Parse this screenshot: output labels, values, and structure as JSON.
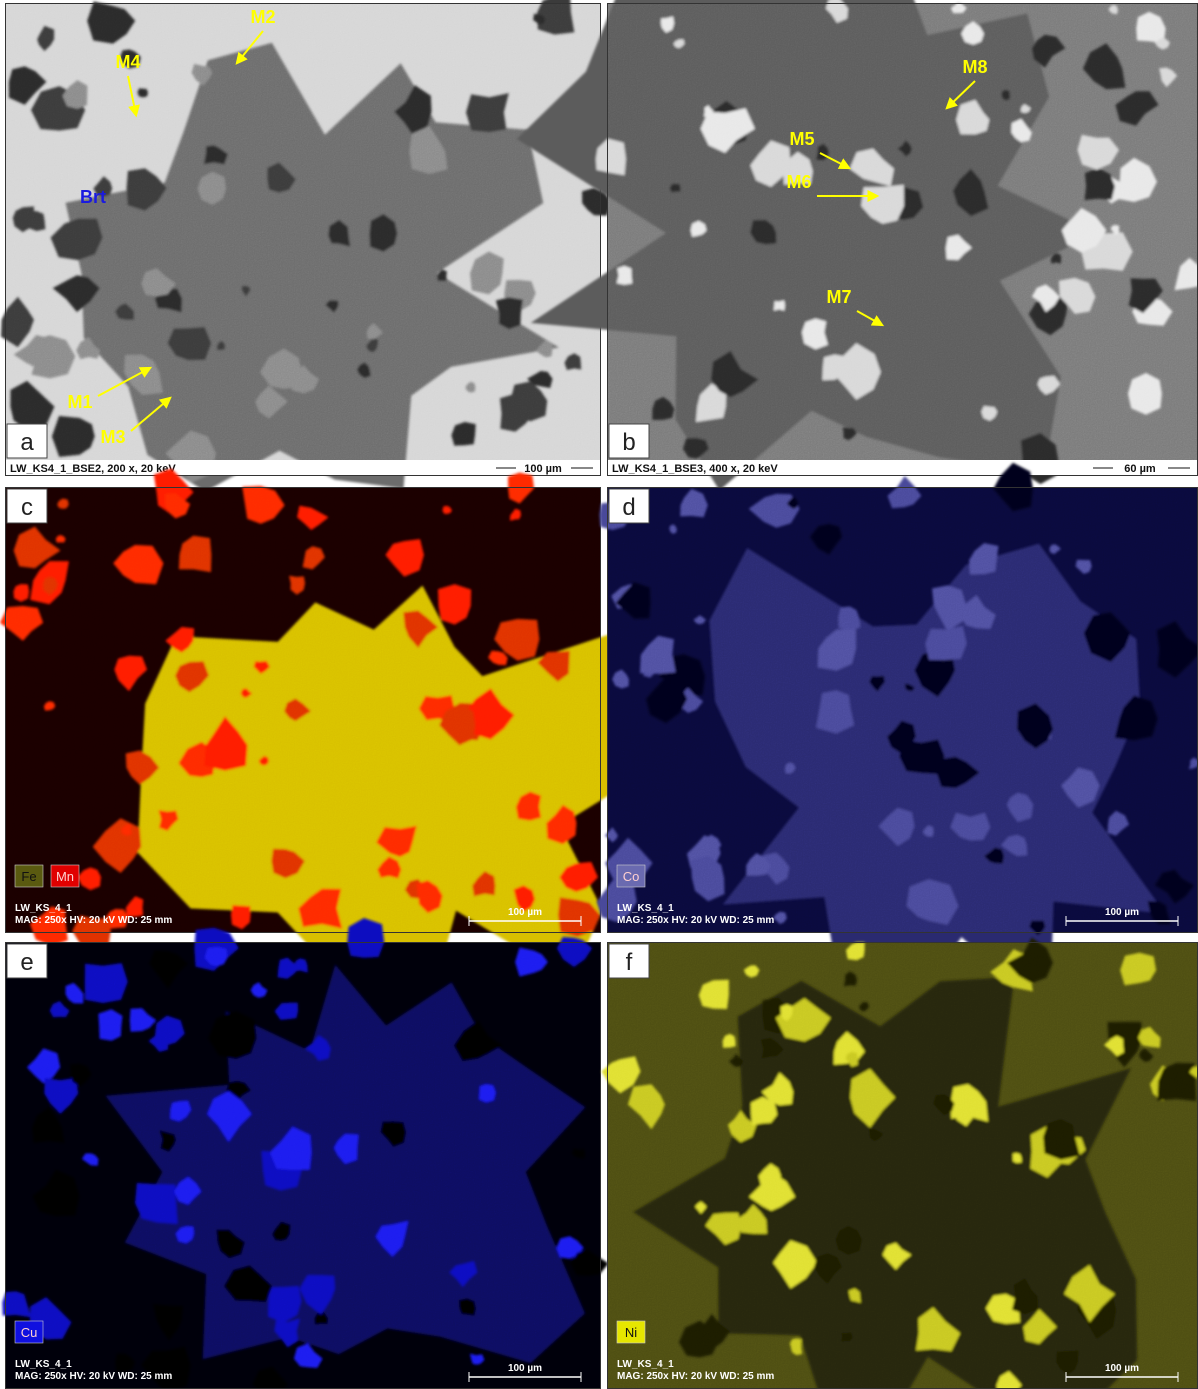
{
  "panels": [
    {
      "letter": "a",
      "info": "LW_KS4_1_BSE2, 200 x, 20 keV",
      "scale": "100 µm",
      "labels": [
        {
          "text": "M2"
        },
        {
          "text": "M4"
        },
        {
          "text": "Brt"
        },
        {
          "text": "M1"
        },
        {
          "text": "M3"
        }
      ]
    },
    {
      "letter": "b",
      "info": "LW_KS4_1_BSE3, 400 x, 20 keV",
      "scale": "60 µm",
      "labels": [
        {
          "text": "M8"
        },
        {
          "text": "M5"
        },
        {
          "text": "M6"
        },
        {
          "text": "M7"
        }
      ]
    },
    {
      "letter": "c",
      "info": [
        "LW_KS_4_1",
        "MAG: 250x   HV: 20 kV   WD: 25 mm"
      ],
      "scale": "100 µm",
      "legend": [
        {
          "text": "Fe",
          "color": "#5a5a10"
        },
        {
          "text": "Mn",
          "color": "#e00000"
        }
      ]
    },
    {
      "letter": "d",
      "info": [
        "LW_KS_4_1",
        "MAG: 250x   HV: 20 kV   WD: 25 mm"
      ],
      "scale": "100 µm",
      "legend": [
        {
          "text": "Co",
          "color": "#6a6ab0"
        }
      ]
    },
    {
      "letter": "e",
      "info": [
        "LW_KS_4_1",
        "MAG: 250x   HV: 20 kV   WD: 25 mm"
      ],
      "scale": "100 µm",
      "legend": [
        {
          "text": "Cu",
          "color": "#1010e0"
        }
      ]
    },
    {
      "letter": "f",
      "info": [
        "LW_KS_4_1",
        "MAG: 250x   HV: 20 kV   WD: 25 mm"
      ],
      "scale": "100 µm",
      "legend": [
        {
          "text": "Ni",
          "color": "#e6e600"
        }
      ]
    }
  ]
}
